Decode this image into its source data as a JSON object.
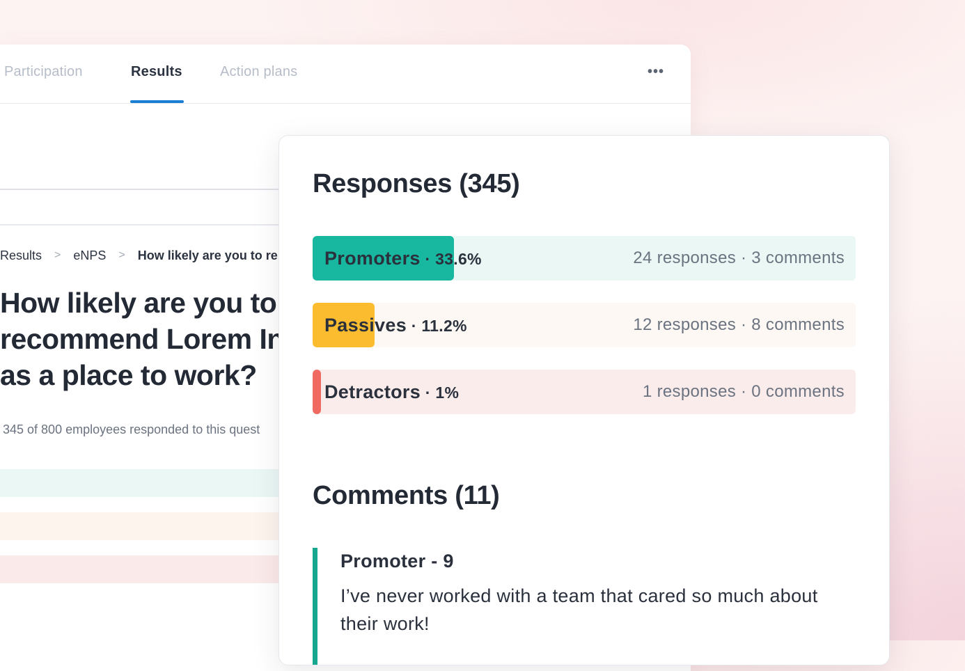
{
  "tabs": [
    {
      "label": "Participation",
      "active": false
    },
    {
      "label": "Results",
      "active": true
    },
    {
      "label": "Action plans",
      "active": false
    }
  ],
  "more_menu": "•••",
  "breadcrumb": {
    "items": [
      "Results",
      "eNPS",
      "How likely are you to re"
    ],
    "separator": ">"
  },
  "question": {
    "line1": "How likely are you to",
    "line2": "recommend Lorem In",
    "line3": "as a place to work?"
  },
  "response_note": "345 of 800 employees responded to this quest",
  "responses": {
    "title": "Responses (345)",
    "rows": [
      {
        "name": "Promoters",
        "sep": " · ",
        "pct": "33.6%",
        "fill": 0.26,
        "detail": "24 responses · 3 comments",
        "color": "#18b8a0"
      },
      {
        "name": "Passives",
        "sep": " · ",
        "pct": "11.2%",
        "fill": 0.114,
        "detail": "12 responses · 8 comments",
        "color": "#fbbd2f"
      },
      {
        "name": "Detractors",
        "sep": " · ",
        "pct": "1%",
        "fill": 0.015,
        "detail": "1 responses · 0 comments",
        "color": "#f06a62"
      }
    ]
  },
  "comments": {
    "title": "Comments (11)",
    "items": [
      {
        "heading": "Promoter - 9",
        "text": "I’ve never worked with a team that cared so much about their work!"
      }
    ]
  }
}
